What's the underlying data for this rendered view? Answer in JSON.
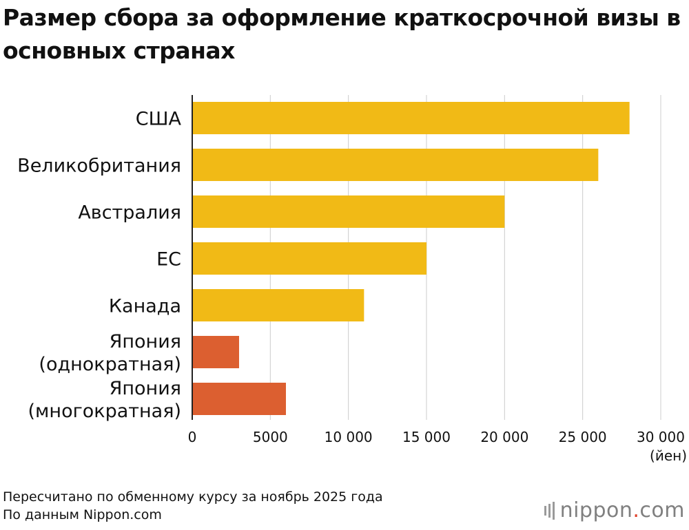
{
  "chart_data": {
    "type": "bar",
    "orientation": "horizontal",
    "title": "Размер сбора за оформление краткосрочной визы в основных странах",
    "categories": [
      [
        "США"
      ],
      [
        "Великобритания"
      ],
      [
        "Австралия"
      ],
      [
        "ЕС"
      ],
      [
        "Канада"
      ],
      [
        "Япония",
        "(однократная)"
      ],
      [
        "Япония",
        "(многократная)"
      ]
    ],
    "values": [
      28000,
      26000,
      20000,
      15000,
      11000,
      3000,
      6000
    ],
    "highlight": [
      false,
      false,
      false,
      false,
      false,
      true,
      true
    ],
    "xlim": [
      0,
      30000
    ],
    "xticks": [
      0,
      5000,
      10000,
      15000,
      20000,
      25000,
      30000
    ],
    "xtick_labels": [
      "0",
      "5000",
      "10 000",
      "15 000",
      "20 000",
      "25 000",
      "30 000"
    ],
    "xunit": "(йен)",
    "colors": {
      "bar": "#F1BA16",
      "bar_highlight": "#DC5F30",
      "grid": "#cccccc",
      "axis": "#222222"
    }
  },
  "notes": {
    "line1": "Пересчитано по обменному курсу за ноябрь 2025 года",
    "line2": "По данным Nippon.com"
  },
  "logo": {
    "name": "nippon",
    "dot": ".",
    "suffix": "com"
  }
}
